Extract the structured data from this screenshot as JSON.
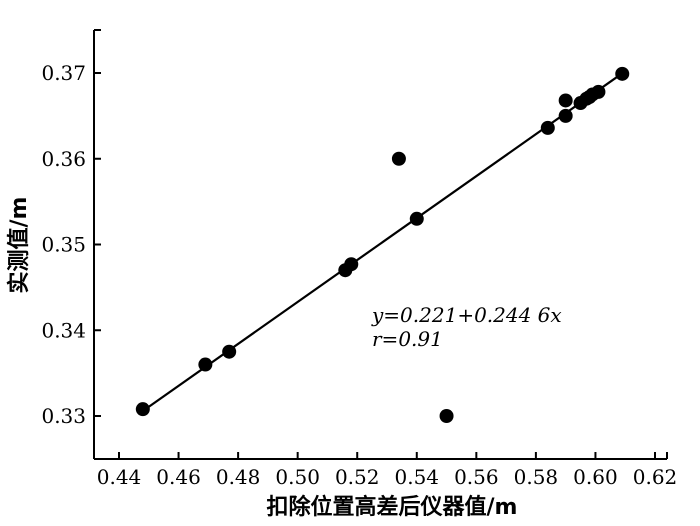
{
  "chart_data": {
    "type": "scatter",
    "title": "",
    "xlabel": "扣除位置高差后仪器值/m",
    "ylabel": "实测值/m",
    "xlim": [
      0.44,
      0.62
    ],
    "ylim": [
      0.325,
      0.375
    ],
    "xticks": [
      "0.44",
      "0.46",
      "0.48",
      "0.50",
      "0.52",
      "0.54",
      "0.56",
      "0.58",
      "0.60",
      "0.62"
    ],
    "yticks": [
      "0.33",
      "0.34",
      "0.35",
      "0.36",
      "0.37"
    ],
    "x": [
      0.448,
      0.469,
      0.477,
      0.516,
      0.518,
      0.534,
      0.54,
      0.55,
      0.584,
      0.59,
      0.59,
      0.595,
      0.597,
      0.598,
      0.599,
      0.601,
      0.609
    ],
    "y": [
      0.3308,
      0.336,
      0.3375,
      0.347,
      0.3477,
      0.36,
      0.353,
      0.33,
      0.3636,
      0.365,
      0.3668,
      0.3665,
      0.367,
      0.3672,
      0.3675,
      0.3678,
      0.3699
    ],
    "fit_line": {
      "intercept": 0.221,
      "slope": 0.2446,
      "x_range": [
        0.448,
        0.609
      ]
    },
    "annotations": {
      "equation": "y=0.221+0.244 6x",
      "r_value": "r=0.91"
    },
    "grid": false,
    "legend": "none"
  }
}
